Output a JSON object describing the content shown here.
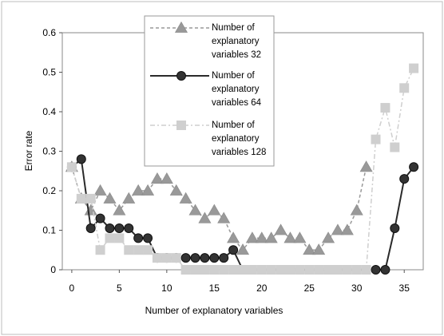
{
  "chart_data": {
    "type": "line",
    "xlabel": "Number of explanatory variables",
    "ylabel": "Error rate",
    "xlim": [
      -1,
      37
    ],
    "ylim": [
      0,
      0.6
    ],
    "xticks": [
      "0",
      "5",
      "10",
      "15",
      "20",
      "25",
      "30",
      "35"
    ],
    "yticks": [
      "0",
      "0.1",
      "0.2",
      "0.3",
      "0.4",
      "0.5",
      "0.6"
    ],
    "grid": false,
    "legend_position": "top-center",
    "series": [
      {
        "name": "Number of explanatory variables 32",
        "legend_lines": [
          "Number of",
          "explanatory",
          "variables 32"
        ],
        "marker": "triangle",
        "line_style": "dashed",
        "color": "#999999",
        "x": [
          0,
          1,
          2,
          3,
          4,
          5,
          6,
          7,
          8,
          9,
          10,
          11,
          12,
          13,
          14,
          15,
          16,
          17,
          18,
          19,
          20,
          21,
          22,
          23,
          24,
          25,
          26,
          27,
          28,
          29,
          30,
          31
        ],
        "y": [
          0.26,
          0.18,
          0.15,
          0.2,
          0.18,
          0.15,
          0.18,
          0.2,
          0.2,
          0.23,
          0.23,
          0.2,
          0.18,
          0.15,
          0.13,
          0.15,
          0.13,
          0.08,
          0.05,
          0.08,
          0.08,
          0.08,
          0.1,
          0.08,
          0.08,
          0.05,
          0.05,
          0.08,
          0.1,
          0.1,
          0.15,
          0.26
        ]
      },
      {
        "name": "Number of explanatory variables 64",
        "legend_lines": [
          "Number of",
          "explanatory",
          "variables 64"
        ],
        "marker": "circle",
        "line_style": "solid",
        "color": "#2a2a2a",
        "x": [
          0,
          1,
          2,
          3,
          4,
          5,
          6,
          7,
          8,
          9,
          10,
          11,
          12,
          13,
          14,
          15,
          16,
          17,
          18,
          19,
          20,
          21,
          22,
          23,
          24,
          25,
          26,
          27,
          28,
          29,
          30,
          31,
          32,
          33,
          34,
          35,
          36
        ],
        "y": [
          0.26,
          0.28,
          0.105,
          0.13,
          0.105,
          0.105,
          0.105,
          0.08,
          0.08,
          0.03,
          0.03,
          0.03,
          0.03,
          0.03,
          0.03,
          0.03,
          0.03,
          0.05,
          0,
          0,
          0,
          0,
          0,
          0,
          0,
          0,
          0,
          0,
          0,
          0,
          0,
          0,
          0,
          0,
          0.105,
          0.23,
          0.26
        ]
      },
      {
        "name": "Number of explanatory variables 128",
        "legend_lines": [
          "Number of",
          "explanatory",
          "variables 128"
        ],
        "marker": "square",
        "line_style": "dash-dot",
        "color": "#cfcfcf",
        "x": [
          0,
          1,
          2,
          3,
          4,
          5,
          6,
          7,
          8,
          9,
          10,
          11,
          12,
          13,
          14,
          15,
          16,
          17,
          18,
          19,
          20,
          21,
          22,
          23,
          24,
          25,
          26,
          27,
          28,
          29,
          30,
          31,
          32,
          33,
          34,
          35,
          36
        ],
        "y": [
          0.26,
          0.18,
          0.18,
          0.05,
          0.08,
          0.08,
          0.05,
          0.05,
          0.05,
          0.03,
          0.03,
          0.03,
          0,
          0,
          0,
          0,
          0,
          0,
          0,
          0,
          0,
          0,
          0,
          0,
          0,
          0,
          0,
          0,
          0,
          0,
          0,
          0,
          0.33,
          0.41,
          0.31,
          0.46,
          0.51
        ]
      }
    ]
  }
}
